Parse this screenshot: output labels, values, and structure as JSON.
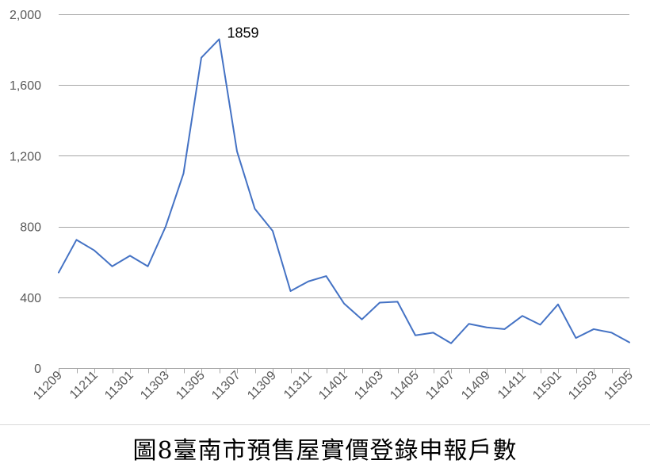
{
  "chart_data": {
    "type": "line",
    "title": "圖8臺南市預售屋實價登錄申報戶數",
    "xlabel": "",
    "ylabel": "",
    "ylim": [
      0,
      2000
    ],
    "y_ticks": [
      "0",
      "400",
      "800",
      "1,200",
      "1,600",
      "2,000"
    ],
    "y_tick_values": [
      0,
      400,
      800,
      1200,
      1600,
      2000
    ],
    "grid": true,
    "legend": "none",
    "x": [
      "11209",
      "11210",
      "11211",
      "11212",
      "11301",
      "11302",
      "11303",
      "11304",
      "11305",
      "11306",
      "11307",
      "11308",
      "11309",
      "11310",
      "11311",
      "11312",
      "11401",
      "11402",
      "11403",
      "11404",
      "11405",
      "11406",
      "11407",
      "11408",
      "11409",
      "11410",
      "11411",
      "11412",
      "11501",
      "11502",
      "11503",
      "11504",
      "11505"
    ],
    "x_tick_labels": [
      "11209",
      "11211",
      "11301",
      "11303",
      "11305",
      "11307",
      "11309",
      "11311",
      "11401",
      "11403",
      "11405",
      "11407",
      "11409",
      "11411",
      "11501",
      "11503",
      "11505"
    ],
    "series": [
      {
        "values": [
          540,
          725,
          665,
          575,
          635,
          575,
          800,
          1100,
          1755,
          1859,
          1225,
          900,
          775,
          435,
          490,
          520,
          365,
          275,
          370,
          375,
          185,
          200,
          140,
          250,
          230,
          220,
          295,
          245,
          360,
          170,
          220,
          200,
          145
        ],
        "color": "#4472c4"
      }
    ],
    "annotations": [
      {
        "text": "1859",
        "x": "11306",
        "y": 1859
      }
    ]
  }
}
